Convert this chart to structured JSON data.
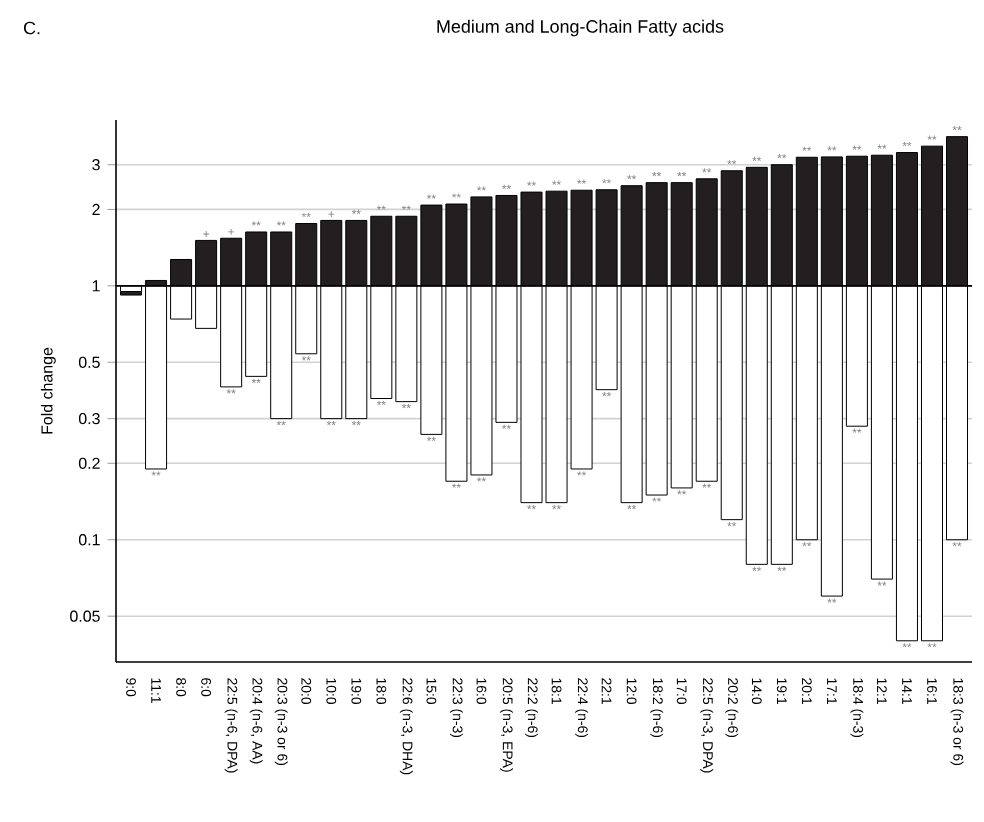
{
  "chart_data": {
    "type": "bar",
    "title": "Medium and Long-Chain Fatty acids",
    "annotations": [
      "C."
    ],
    "ylabel": "Fold change",
    "categories": [
      "9:0",
      "11:1",
      "8:0",
      "6:0",
      "22:5 (n-6, DPA)",
      "20:4 (n-6, AA)",
      "20:3 (n-3 or 6)",
      "20:0",
      "10:0",
      "19:0",
      "18:0",
      "22:6 (n-3, DHA)",
      "15:0",
      "22:3 (n-3)",
      "16:0",
      "20:5 (n-3, EPA)",
      "22:2 (n-6)",
      "18:1",
      "22:4 (n-6)",
      "22:1",
      "12:0",
      "18:2 (n-6)",
      "17:0",
      "22:5 (n-3, DPA)",
      "20:2 (n-6)",
      "14:0",
      "19:1",
      "20:1",
      "17:1",
      "18:4 (n-3)",
      "12:1",
      "14:1",
      "16:1",
      "18:3 (n-3 or 6)"
    ],
    "series": [
      {
        "color": "#231f20",
        "base": [
          1,
          1,
          1,
          1,
          1,
          1,
          1,
          1,
          1,
          1,
          1,
          1,
          1,
          1,
          1,
          1,
          1,
          1,
          1,
          1,
          1,
          1,
          1,
          1,
          1,
          1,
          1,
          1,
          1,
          1,
          1,
          1,
          1,
          1
        ],
        "values": [
          -0.08,
          0.05,
          0.27,
          0.51,
          0.54,
          0.63,
          0.63,
          0.76,
          0.81,
          0.81,
          0.88,
          0.88,
          1.08,
          1.1,
          1.24,
          1.27,
          1.34,
          1.36,
          1.38,
          1.39,
          1.48,
          1.55,
          1.55,
          1.64,
          1.84,
          1.93,
          2.0,
          2.21,
          2.22,
          2.24,
          2.27,
          2.35,
          2.55,
          2.87
        ],
        "value_labels": [
          null,
          null,
          null,
          "+",
          "+",
          "**",
          "**",
          "**",
          "+",
          "**",
          "**",
          "**",
          "**",
          "**",
          "**",
          "**",
          "**",
          "**",
          "**",
          "**",
          "**",
          "**",
          "**",
          "**",
          "**",
          "**",
          "**",
          "**",
          "**",
          "**",
          "**",
          "**",
          "**",
          "**"
        ]
      },
      {
        "color": "#ffffff",
        "base": [
          1,
          1,
          1,
          1,
          1,
          1,
          1,
          1,
          1,
          1,
          1,
          1,
          1,
          1,
          1,
          1,
          1,
          1,
          1,
          1,
          1,
          1,
          1,
          1,
          1,
          1,
          1,
          1,
          1,
          1,
          1,
          1,
          1,
          1
        ],
        "values": [
          -0.05,
          -0.81,
          -0.26,
          -0.32,
          -0.6,
          -0.56,
          -0.7,
          -0.46,
          -0.7,
          -0.7,
          -0.64,
          -0.65,
          -0.74,
          -0.83,
          -0.82,
          -0.71,
          -0.86,
          -0.86,
          -0.81,
          -0.61,
          -0.86,
          -0.85,
          -0.84,
          -0.83,
          -0.88,
          -0.92,
          -0.92,
          -0.9,
          -0.94,
          -0.72,
          -0.93,
          -0.96,
          -0.96,
          -0.9
        ],
        "value_labels": [
          null,
          "**",
          null,
          null,
          "**",
          "**",
          "**",
          "**",
          "**",
          "**",
          "**",
          "**",
          "**",
          "**",
          "**",
          "**",
          "**",
          "**",
          "**",
          "**",
          "**",
          "**",
          "**",
          "**",
          "**",
          "**",
          "**",
          "**",
          "**",
          "**",
          "**",
          "**",
          "**",
          "**"
        ]
      }
    ],
    "ylim": [
      0.033,
      4.5
    ],
    "yticks": [
      0.05,
      0.1,
      0.2,
      0.3,
      0.5,
      1,
      2,
      3
    ],
    "log": true,
    "grid": "y",
    "ref_lines": [
      {
        "axis": "y",
        "value": 1,
        "color": "#000000"
      }
    ]
  }
}
